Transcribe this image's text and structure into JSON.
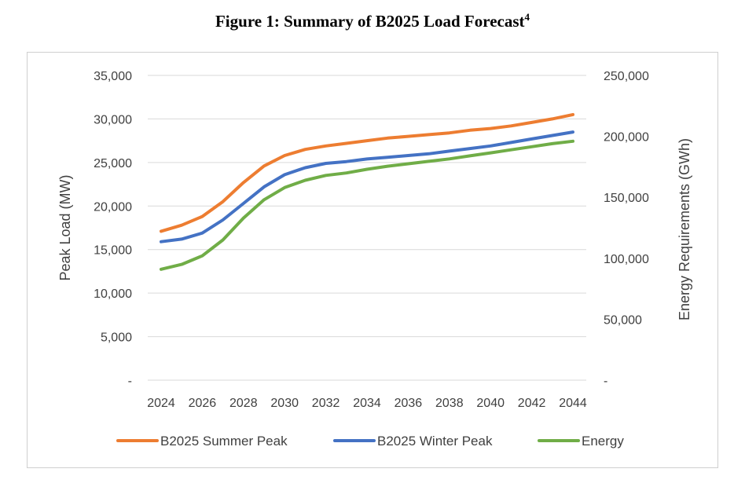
{
  "figure": {
    "title": "Figure 1: Summary of B2025 Load Forecast",
    "footnote": "4"
  },
  "chart_data": {
    "type": "line",
    "title": "Figure 1: Summary of B2025 Load Forecast",
    "xlabel": "",
    "ylabel": "Peak Load (MW)",
    "y2label": "Energy Requirements (GWh)",
    "x": [
      2024,
      2025,
      2026,
      2027,
      2028,
      2029,
      2030,
      2031,
      2032,
      2033,
      2034,
      2035,
      2036,
      2037,
      2038,
      2039,
      2040,
      2041,
      2042,
      2043,
      2044
    ],
    "x_tick_labels": [
      "2024",
      "2026",
      "2028",
      "2030",
      "2032",
      "2034",
      "2036",
      "2038",
      "2040",
      "2042",
      "2044"
    ],
    "ylim": [
      0,
      35000
    ],
    "y_tick_labels": [
      "-",
      "5,000",
      "10,000",
      "15,000",
      "20,000",
      "25,000",
      "30,000",
      "35,000"
    ],
    "y2lim": [
      0,
      250000
    ],
    "y2_tick_labels": [
      "-",
      "50,000",
      "100,000",
      "150,000",
      "200,000",
      "250,000"
    ],
    "grid": true,
    "legend_position": "bottom",
    "series": [
      {
        "name": "B2025 Summer Peak",
        "axis": "left",
        "color": "#ED7D31",
        "values": [
          17100,
          17800,
          18800,
          20500,
          22700,
          24600,
          25800,
          26500,
          26900,
          27200,
          27500,
          27800,
          28000,
          28200,
          28400,
          28700,
          28900,
          29200,
          29600,
          30000,
          30500
        ]
      },
      {
        "name": "B2025 Winter Peak",
        "axis": "left",
        "color": "#4472C4",
        "values": [
          15900,
          16200,
          16900,
          18400,
          20300,
          22200,
          23600,
          24400,
          24900,
          25100,
          25400,
          25600,
          25800,
          26000,
          26300,
          26600,
          26900,
          27300,
          27700,
          28100,
          28500
        ]
      },
      {
        "name": "Energy",
        "axis": "right",
        "color": "#70AD47",
        "values": [
          91000,
          95000,
          102000,
          115000,
          133000,
          148000,
          158000,
          164000,
          168000,
          170000,
          173000,
          175500,
          177500,
          179500,
          181500,
          184000,
          186500,
          189000,
          191500,
          194000,
          196000
        ]
      }
    ]
  }
}
